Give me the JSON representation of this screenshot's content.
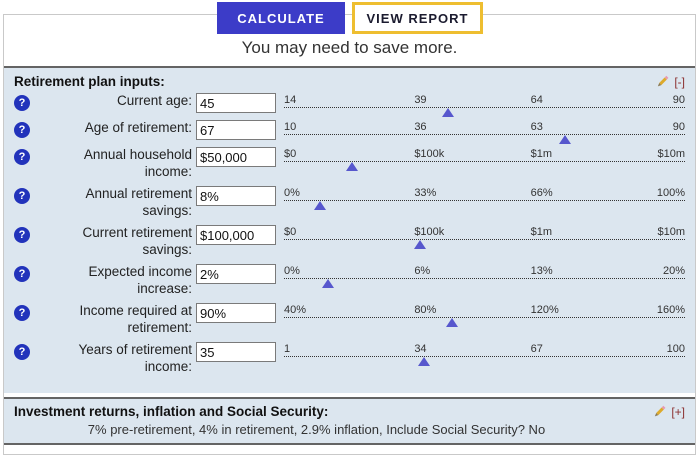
{
  "buttons": {
    "calculate": "CALCULATE",
    "view_report": "VIEW REPORT"
  },
  "headline": "You may need to save more.",
  "sections": {
    "inputs": {
      "title": "Retirement plan inputs:",
      "collapse_label": "[-]",
      "rows": [
        {
          "label": "Current age:",
          "value": "45",
          "ticks": [
            "14",
            "39",
            "64",
            "90"
          ],
          "thumb_pct": 41
        },
        {
          "label": "Age of retirement:",
          "value": "67",
          "ticks": [
            "10",
            "36",
            "63",
            "90"
          ],
          "thumb_pct": 70
        },
        {
          "label": "Annual household income:",
          "value": "$50,000",
          "ticks": [
            "$0",
            "$100k",
            "$1m",
            "$10m"
          ],
          "thumb_pct": 17
        },
        {
          "label": "Annual retirement savings:",
          "value": "8%",
          "ticks": [
            "0%",
            "33%",
            "66%",
            "100%"
          ],
          "thumb_pct": 9
        },
        {
          "label": "Current retirement savings:",
          "value": "$100,000",
          "ticks": [
            "$0",
            "$100k",
            "$1m",
            "$10m"
          ],
          "thumb_pct": 34
        },
        {
          "label": "Expected income increase:",
          "value": "2%",
          "ticks": [
            "0%",
            "6%",
            "13%",
            "20%"
          ],
          "thumb_pct": 11
        },
        {
          "label": "Income required at retirement:",
          "value": "90%",
          "ticks": [
            "40%",
            "80%",
            "120%",
            "160%"
          ],
          "thumb_pct": 42
        },
        {
          "label": "Years of retirement income:",
          "value": "35",
          "ticks": [
            "1",
            "34",
            "67",
            "100"
          ],
          "thumb_pct": 35
        }
      ]
    },
    "returns": {
      "title": "Investment returns, inflation and Social Security:",
      "expand_label": "[+]",
      "summary": "7% pre-retirement, 4% in retirement, 2.9% inflation, Include Social Security? No"
    }
  },
  "icons": {
    "help": "question-mark-icon",
    "edit": "pencil-icon"
  },
  "colors": {
    "calculate_bg": "#3c3cc8",
    "view_report_border": "#eebe30",
    "section_bg": "#dce6ef",
    "section_border": "#646464",
    "help_icon_bg": "#2233bb",
    "slider_thumb": "#5757cd",
    "collapse_text": "#8b3030"
  }
}
